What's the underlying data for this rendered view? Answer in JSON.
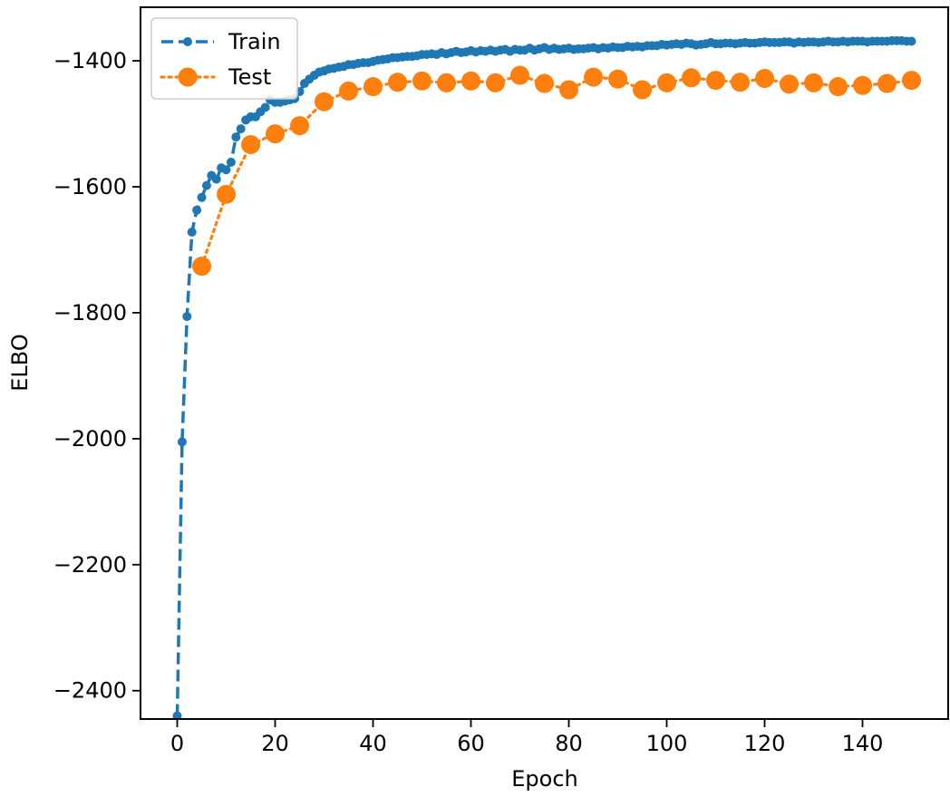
{
  "chart_data": {
    "type": "line",
    "title": "",
    "xlabel": "Epoch",
    "ylabel": "ELBO",
    "xlim": [
      -7.5,
      157.5
    ],
    "ylim": [
      -2445,
      -1315
    ],
    "xticks": [
      0,
      20,
      40,
      60,
      80,
      100,
      120,
      140
    ],
    "yticks": [
      -2400,
      -2200,
      -2000,
      -1800,
      -1600,
      -1400
    ],
    "xtick_labels": [
      "0",
      "20",
      "40",
      "60",
      "80",
      "100",
      "120",
      "140"
    ],
    "ytick_labels": [
      "−2400",
      "−2200",
      "−2000",
      "−1800",
      "−1600",
      "−1400"
    ],
    "grid": false,
    "legend_position": "top-left",
    "series": [
      {
        "name": "Train",
        "color": "#1f77b4",
        "linestyle": "dashed",
        "marker": "small-circle",
        "x": [
          0,
          1,
          2,
          3,
          4,
          5,
          6,
          7,
          8,
          9,
          10,
          11,
          12,
          13,
          14,
          15,
          16,
          17,
          18,
          19,
          20,
          21,
          22,
          23,
          24,
          25,
          26,
          27,
          28,
          29,
          30,
          31,
          32,
          33,
          34,
          35,
          36,
          37,
          38,
          39,
          40,
          41,
          42,
          43,
          44,
          45,
          46,
          47,
          48,
          49,
          50,
          51,
          52,
          53,
          54,
          55,
          56,
          57,
          58,
          59,
          60,
          61,
          62,
          63,
          64,
          65,
          66,
          67,
          68,
          69,
          70,
          71,
          72,
          73,
          74,
          75,
          76,
          77,
          78,
          79,
          80,
          81,
          82,
          83,
          84,
          85,
          86,
          87,
          88,
          89,
          90,
          91,
          92,
          93,
          94,
          95,
          96,
          97,
          98,
          99,
          100,
          101,
          102,
          103,
          104,
          105,
          106,
          107,
          108,
          109,
          110,
          111,
          112,
          113,
          114,
          115,
          116,
          117,
          118,
          119,
          120,
          121,
          122,
          123,
          124,
          125,
          126,
          127,
          128,
          129,
          130,
          131,
          132,
          133,
          134,
          135,
          136,
          137,
          138,
          139,
          140,
          141,
          142,
          143,
          144,
          145,
          146,
          147,
          148,
          149,
          150
        ],
        "values": [
          -2440,
          -2005,
          -1806,
          -1672,
          -1637,
          -1617,
          -1598,
          -1582,
          -1588,
          -1570,
          -1573,
          -1561,
          -1521,
          -1508,
          -1494,
          -1489,
          -1489,
          -1481,
          -1474,
          -1462,
          -1466,
          -1466,
          -1464,
          -1462,
          -1460,
          -1449,
          -1436,
          -1429,
          -1423,
          -1418,
          -1416,
          -1413,
          -1412,
          -1410,
          -1409,
          -1406,
          -1406,
          -1404,
          -1403,
          -1403,
          -1401,
          -1399,
          -1398,
          -1397,
          -1395,
          -1395,
          -1394,
          -1393,
          -1393,
          -1392,
          -1390,
          -1390,
          -1389,
          -1390,
          -1387,
          -1389,
          -1387,
          -1385,
          -1387,
          -1386,
          -1384,
          -1386,
          -1384,
          -1385,
          -1383,
          -1385,
          -1383,
          -1382,
          -1385,
          -1382,
          -1383,
          -1383,
          -1380,
          -1383,
          -1381,
          -1379,
          -1382,
          -1380,
          -1382,
          -1381,
          -1380,
          -1382,
          -1381,
          -1381,
          -1380,
          -1379,
          -1381,
          -1379,
          -1380,
          -1378,
          -1379,
          -1379,
          -1377,
          -1378,
          -1377,
          -1378,
          -1376,
          -1376,
          -1376,
          -1374,
          -1375,
          -1374,
          -1373,
          -1374,
          -1372,
          -1373,
          -1375,
          -1374,
          -1373,
          -1371,
          -1373,
          -1373,
          -1372,
          -1372,
          -1373,
          -1372,
          -1371,
          -1372,
          -1372,
          -1371,
          -1370,
          -1371,
          -1371,
          -1371,
          -1370,
          -1370,
          -1372,
          -1370,
          -1371,
          -1370,
          -1370,
          -1371,
          -1370,
          -1369,
          -1370,
          -1370,
          -1369,
          -1370,
          -1369,
          -1369,
          -1369,
          -1370,
          -1369,
          -1369,
          -1369,
          -1369,
          -1368,
          -1368,
          -1368,
          -1369,
          -1369
        ]
      },
      {
        "name": "Test",
        "color": "#ff7f0e",
        "linestyle": "dotted",
        "marker": "large-circle",
        "x": [
          5,
          10,
          15,
          20,
          25,
          30,
          35,
          40,
          45,
          50,
          55,
          60,
          65,
          70,
          75,
          80,
          85,
          90,
          95,
          100,
          105,
          110,
          115,
          120,
          125,
          130,
          135,
          140,
          145,
          150
        ],
        "values": [
          -1726,
          -1612,
          -1533,
          -1516,
          -1503,
          -1465,
          -1448,
          -1441,
          -1434,
          -1432,
          -1435,
          -1432,
          -1435,
          -1423,
          -1436,
          -1446,
          -1426,
          -1429,
          -1446,
          -1435,
          -1427,
          -1431,
          -1434,
          -1428,
          -1437,
          -1435,
          -1441,
          -1439,
          -1436,
          -1431
        ]
      }
    ]
  }
}
